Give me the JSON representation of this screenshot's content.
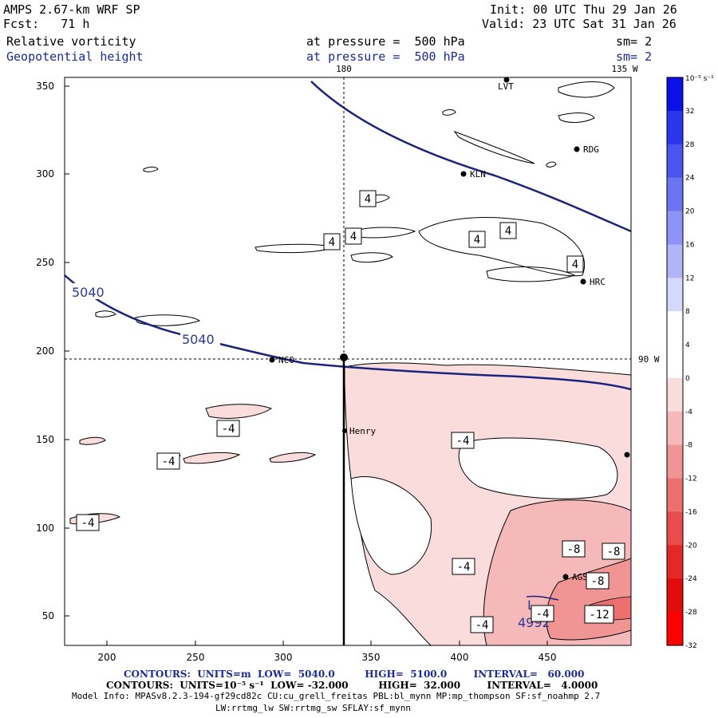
{
  "header": {
    "model": "AMPS 2.67-km WRF SP",
    "forecast": "Fcst:   71 h",
    "init": "Init: 00 UTC Thu 29 Jan 26",
    "valid": "Valid: 23 UTC Sat 31 Jan 26",
    "field1": "Relative vorticity",
    "field2": "Geopotential height",
    "pressure1": "at pressure =  500 hPa",
    "pressure2": "at pressure =  500 hPa",
    "sm1": "sm= 2",
    "sm2": "sm= 2"
  },
  "map": {
    "top_labels": {
      "lon180": "180",
      "lon135": "135 W"
    },
    "right_label": "90 W",
    "x_ticks": [
      "200",
      "250",
      "300",
      "350",
      "400",
      "450"
    ],
    "y_ticks": [
      "350",
      "300",
      "250",
      "200",
      "150",
      "100",
      "50"
    ],
    "stations": [
      "LVT",
      "RDG",
      "KLN",
      "HRC",
      "NCO",
      "Henry",
      "AGS"
    ],
    "height_labels": [
      "5040",
      "5040",
      "4992"
    ],
    "low_marker": "L",
    "vort_labels": [
      "4",
      "4",
      "4",
      "4",
      "4",
      "4",
      "-4",
      "-4",
      "-4",
      "-4",
      "-4",
      "-4",
      "-4",
      "-8",
      "-8",
      "-8",
      "-8",
      "-12"
    ]
  },
  "colorbar": {
    "unit": "10⁻⁵ s⁻¹",
    "labels": [
      "32",
      "28",
      "24",
      "20",
      "16",
      "12",
      "8",
      "4",
      "0",
      "-4",
      "-8",
      "-12",
      "-16",
      "-20",
      "-24",
      "-28",
      "-32"
    ],
    "colors": [
      "#0a10e6",
      "#2a35ec",
      "#4a55ef",
      "#6b74f2",
      "#8d94f5",
      "#b0b5f8",
      "#d6d8fb",
      "#ffffff",
      "#ffffff",
      "#fbdcdc",
      "#f6b9b9",
      "#f19494",
      "#ec7070",
      "#e84c4c",
      "#e42828",
      "#e10d0d",
      "#ff0000"
    ]
  },
  "footer": {
    "line1": "CONTOURS:  UNITS=m  LOW=  5040.0         HIGH=  5100.0        INTERVAL=   60.000",
    "line2": "CONTOURS:  UNITS=10⁻⁵ s⁻¹  LOW= -32.000         HIGH=  32.000        INTERVAL=   4.0000",
    "line3": "Model Info: MPASv8.2.3-194-gf29cd82c CU:cu_grell_freitas PBL:bl_mynn MP:mp_thompson SF:sf_noahmp 2.7",
    "line4": "LW:rrtmg_lw SW:rrtmg_sw SFLAY:sf_mynn"
  }
}
